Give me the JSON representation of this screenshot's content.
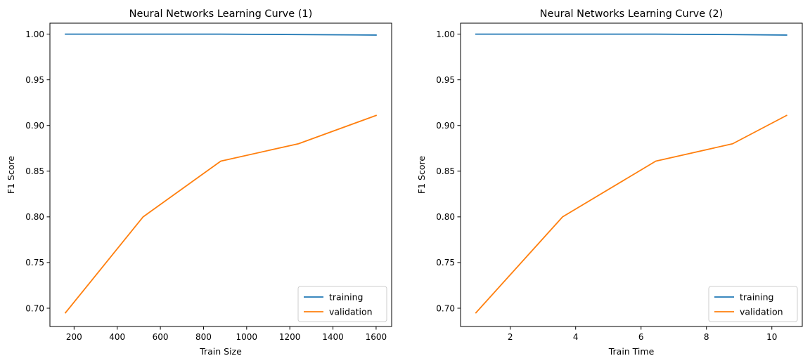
{
  "chart_data": [
    {
      "type": "line",
      "title": "Neural Networks Learning Curve (1)",
      "xlabel": "Train Size",
      "ylabel": "F1 Score",
      "xlim": [
        88,
        1672
      ],
      "ylim": [
        0.68,
        1.012
      ],
      "xticks": [
        200,
        400,
        600,
        800,
        1000,
        1200,
        1400,
        1600
      ],
      "yticks": [
        0.7,
        0.75,
        0.8,
        0.85,
        0.9,
        0.95,
        1.0
      ],
      "grid": false,
      "legend_position": "lower-right",
      "x": [
        160,
        520,
        880,
        1240,
        1600
      ],
      "series": [
        {
          "name": "training",
          "color": "#1f77b4",
          "values": [
            1.0,
            1.0,
            1.0,
            0.9995,
            0.999
          ]
        },
        {
          "name": "validation",
          "color": "#ff7f0e",
          "values": [
            0.695,
            0.8,
            0.861,
            0.88,
            0.911
          ]
        }
      ]
    },
    {
      "type": "line",
      "title": "Neural Networks Learning Curve (2)",
      "xlabel": "Train Time",
      "ylabel": "F1 Score",
      "xlim": [
        0.48,
        10.93
      ],
      "ylim": [
        0.68,
        1.012
      ],
      "xticks": [
        2,
        4,
        6,
        8,
        10
      ],
      "yticks": [
        0.7,
        0.75,
        0.8,
        0.85,
        0.9,
        0.95,
        1.0
      ],
      "grid": false,
      "legend_position": "lower-right",
      "x": [
        0.95,
        3.6,
        6.45,
        8.8,
        10.45
      ],
      "series": [
        {
          "name": "training",
          "color": "#1f77b4",
          "values": [
            1.0,
            1.0,
            1.0,
            0.9995,
            0.999
          ]
        },
        {
          "name": "validation",
          "color": "#ff7f0e",
          "values": [
            0.695,
            0.8,
            0.861,
            0.88,
            0.911
          ]
        }
      ]
    }
  ]
}
